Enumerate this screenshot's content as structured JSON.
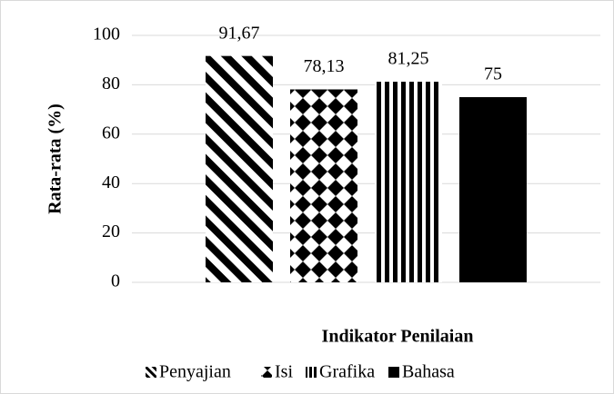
{
  "chart_data": {
    "type": "bar",
    "categories": [
      null
    ],
    "series": [
      {
        "name": "Penyajian",
        "color": "#000000",
        "pattern": "diagonal",
        "values": [
          91.67
        ],
        "value_labels": [
          "91,67"
        ]
      },
      {
        "name": "Isi",
        "color": "#000000",
        "pattern": "diamond",
        "values": [
          78.13
        ],
        "value_labels": [
          "78,13"
        ]
      },
      {
        "name": "Grafika",
        "color": "#000000",
        "pattern": "vertical",
        "values": [
          81.25
        ],
        "value_labels": [
          "81,25"
        ]
      },
      {
        "name": "Bahasa",
        "color": "#000000",
        "pattern": "solid",
        "values": [
          75
        ],
        "value_labels": [
          "75"
        ]
      }
    ],
    "ylabel": "Rata-rata (%)",
    "xlabel": "Indikator Penilaian",
    "ylim": [
      0,
      100
    ],
    "yticks": [
      0,
      20,
      40,
      60,
      80,
      100
    ],
    "grid": true,
    "legend": "bottom"
  }
}
